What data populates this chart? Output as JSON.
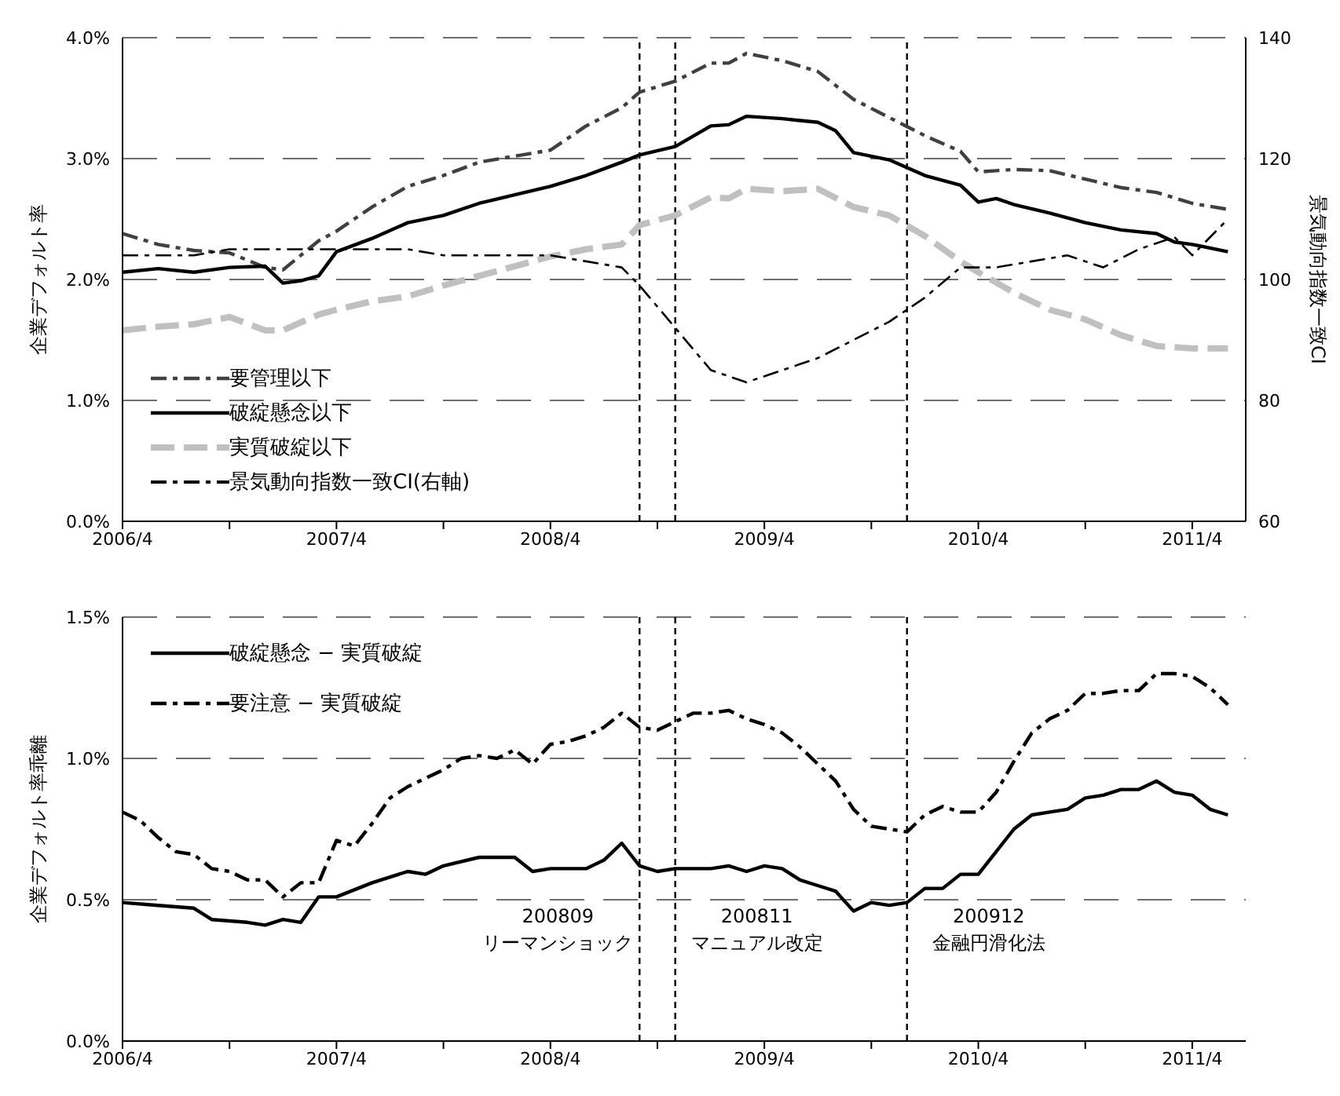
{
  "chart_data": [
    {
      "type": "line",
      "ylabel": "企業デフォルト率",
      "y2label": "景気動向指数一致CI",
      "xlim": [
        "2006-04",
        "2011-07"
      ],
      "xticks": [
        {
          "value": "2006-04",
          "label": "2006/4"
        },
        {
          "value": "2006-10",
          "label": null
        },
        {
          "value": "2007-04",
          "label": "2007/4"
        },
        {
          "value": "2007-10",
          "label": null
        },
        {
          "value": "2008-04",
          "label": "2008/4"
        },
        {
          "value": "2008-10",
          "label": null
        },
        {
          "value": "2009-04",
          "label": "2009/4"
        },
        {
          "value": "2009-10",
          "label": null
        },
        {
          "value": "2010-04",
          "label": "2010/4"
        },
        {
          "value": "2010-10",
          "label": null
        },
        {
          "value": "2011-04",
          "label": "2011/4"
        }
      ],
      "ylim": [
        0,
        4
      ],
      "yticks": [
        {
          "value": 0,
          "label": "0.0%"
        },
        {
          "value": 1,
          "label": "1.0%"
        },
        {
          "value": 2,
          "label": "2.0%"
        },
        {
          "value": 3,
          "label": "3.0%"
        },
        {
          "value": 4,
          "label": "4.0%"
        }
      ],
      "y2lim": [
        60,
        140
      ],
      "y2ticks": [
        60,
        80,
        100,
        120,
        140
      ],
      "grid": "y",
      "legend": "bottom left",
      "ref_lines": [
        {
          "axis": "x",
          "value": "2008-09",
          "label": null,
          "line_style": "dashed",
          "color": "#000000"
        },
        {
          "axis": "x",
          "value": "2008-11",
          "label": null,
          "line_style": "dashed",
          "color": "#000000"
        },
        {
          "axis": "x",
          "value": "2009-12",
          "label": null,
          "line_style": "dashed",
          "color": "#000000"
        }
      ],
      "series": [
        {
          "name": "要管理以下",
          "color": "#404040",
          "line_style": "dashdot",
          "x": [
            "2006-04",
            "2006-06",
            "2006-08",
            "2006-10",
            "2006-12",
            "2007-01",
            "2007-03",
            "2007-04",
            "2007-06",
            "2007-08",
            "2007-10",
            "2007-12",
            "2008-02",
            "2008-04",
            "2008-06",
            "2008-08",
            "2008-09",
            "2008-11",
            "2009-01",
            "2009-02",
            "2009-03",
            "2009-05",
            "2009-07",
            "2009-09",
            "2009-11",
            "2010-01",
            "2010-03",
            "2010-04",
            "2010-06",
            "2010-08",
            "2010-10",
            "2010-12",
            "2011-02",
            "2011-04",
            "2011-06"
          ],
          "values": [
            2.38,
            2.29,
            2.24,
            2.22,
            2.1,
            2.08,
            2.32,
            2.4,
            2.6,
            2.77,
            2.86,
            2.97,
            3.02,
            3.07,
            3.27,
            3.42,
            3.55,
            3.64,
            3.79,
            3.79,
            3.87,
            3.81,
            3.72,
            3.49,
            3.34,
            3.19,
            3.06,
            2.89,
            2.91,
            2.9,
            2.83,
            2.76,
            2.72,
            2.63,
            2.58
          ]
        },
        {
          "name": "破綻懸念以下",
          "color": "#000000",
          "line_style": "solid",
          "x": [
            "2006-04",
            "2006-06",
            "2006-08",
            "2006-10",
            "2006-12",
            "2007-01",
            "2007-02",
            "2007-03",
            "2007-04",
            "2007-06",
            "2007-08",
            "2007-10",
            "2007-12",
            "2008-02",
            "2008-04",
            "2008-06",
            "2008-08",
            "2008-09",
            "2008-11",
            "2009-01",
            "2009-02",
            "2009-03",
            "2009-05",
            "2009-07",
            "2009-08",
            "2009-09",
            "2009-11",
            "2010-01",
            "2010-03",
            "2010-04",
            "2010-05",
            "2010-06",
            "2010-08",
            "2010-10",
            "2010-12",
            "2011-02",
            "2011-03",
            "2011-04",
            "2011-06"
          ],
          "values": [
            2.06,
            2.09,
            2.06,
            2.1,
            2.11,
            1.97,
            1.99,
            2.03,
            2.23,
            2.34,
            2.47,
            2.53,
            2.63,
            2.7,
            2.77,
            2.86,
            2.97,
            3.03,
            3.1,
            3.27,
            3.28,
            3.35,
            3.33,
            3.3,
            3.23,
            3.05,
            2.99,
            2.86,
            2.78,
            2.64,
            2.67,
            2.62,
            2.55,
            2.47,
            2.41,
            2.38,
            2.31,
            2.29,
            2.23
          ]
        },
        {
          "name": "実質破綻以下",
          "color": "#c0c0c0",
          "line_style": "dashed",
          "x": [
            "2006-04",
            "2006-06",
            "2006-08",
            "2006-10",
            "2006-12",
            "2007-01",
            "2007-03",
            "2007-04",
            "2007-06",
            "2007-08",
            "2007-10",
            "2007-12",
            "2008-02",
            "2008-04",
            "2008-06",
            "2008-08",
            "2008-09",
            "2008-11",
            "2009-01",
            "2009-02",
            "2009-03",
            "2009-05",
            "2009-07",
            "2009-09",
            "2009-11",
            "2010-01",
            "2010-03",
            "2010-04",
            "2010-06",
            "2010-08",
            "2010-10",
            "2010-12",
            "2011-02",
            "2011-04",
            "2011-06"
          ],
          "values": [
            1.58,
            1.61,
            1.63,
            1.69,
            1.58,
            1.58,
            1.71,
            1.75,
            1.82,
            1.86,
            1.95,
            2.03,
            2.11,
            2.19,
            2.25,
            2.29,
            2.45,
            2.53,
            2.68,
            2.67,
            2.75,
            2.73,
            2.75,
            2.6,
            2.53,
            2.36,
            2.15,
            2.06,
            1.89,
            1.75,
            1.67,
            1.54,
            1.45,
            1.43,
            1.43
          ]
        },
        {
          "name": "景気動向指数一致CI(右軸)",
          "color": "#000000",
          "line_style": "dashdot",
          "axis": "y2",
          "x": [
            "2006-04",
            "2006-06",
            "2006-08",
            "2006-10",
            "2006-12",
            "2007-02",
            "2007-04",
            "2007-06",
            "2007-08",
            "2007-10",
            "2007-12",
            "2008-02",
            "2008-04",
            "2008-06",
            "2008-08",
            "2008-09",
            "2008-11",
            "2009-01",
            "2009-03",
            "2009-05",
            "2009-07",
            "2009-09",
            "2009-11",
            "2010-01",
            "2010-03",
            "2010-05",
            "2010-07",
            "2010-09",
            "2010-11",
            "2011-01",
            "2011-03",
            "2011-04",
            "2011-06"
          ],
          "values": [
            104,
            104,
            104,
            105,
            105,
            105,
            105,
            105,
            105,
            104,
            104,
            104,
            104,
            103,
            102,
            99,
            92,
            85,
            83,
            85,
            87,
            90,
            93,
            97,
            102,
            102,
            103,
            104,
            102,
            105,
            107,
            104,
            110
          ]
        }
      ]
    },
    {
      "type": "line",
      "ylabel": "企業デフォルト率乖離",
      "xlim": [
        "2006-04",
        "2011-07"
      ],
      "xticks": [
        {
          "value": "2006-04",
          "label": "2006/4"
        },
        {
          "value": "2006-10",
          "label": null
        },
        {
          "value": "2007-04",
          "label": "2007/4"
        },
        {
          "value": "2007-10",
          "label": null
        },
        {
          "value": "2008-04",
          "label": "2008/4"
        },
        {
          "value": "2008-10",
          "label": null
        },
        {
          "value": "2009-04",
          "label": "2009/4"
        },
        {
          "value": "2009-10",
          "label": null
        },
        {
          "value": "2010-04",
          "label": "2010/4"
        },
        {
          "value": "2010-10",
          "label": null
        },
        {
          "value": "2011-04",
          "label": "2011/4"
        }
      ],
      "ylim": [
        0,
        1.5
      ],
      "yticks": [
        {
          "value": 0,
          "label": "0.0%"
        },
        {
          "value": 0.5,
          "label": "0.5%"
        },
        {
          "value": 1,
          "label": "1.0%"
        },
        {
          "value": 1.5,
          "label": "1.5%"
        }
      ],
      "grid": "y",
      "legend": "top left",
      "ref_lines": [
        {
          "axis": "x",
          "value": "2008-09",
          "label": "200809\nリーマンショック",
          "line_style": "dashed",
          "color": "#000000"
        },
        {
          "axis": "x",
          "value": "2008-11",
          "label": "200811\nマニュアル改定",
          "line_style": "dashed",
          "color": "#000000"
        },
        {
          "axis": "x",
          "value": "2009-12",
          "label": "200912\n金融円滑化法",
          "line_style": "dashed",
          "color": "#000000"
        }
      ],
      "series": [
        {
          "name": "破綻懸念 − 実質破綻",
          "color": "#000000",
          "line_style": "solid",
          "x": [
            "2006-04",
            "2006-06",
            "2006-08",
            "2006-09",
            "2006-11",
            "2006-12",
            "2007-01",
            "2007-02",
            "2007-03",
            "2007-04",
            "2007-06",
            "2007-08",
            "2007-09",
            "2007-10",
            "2007-12",
            "2008-02",
            "2008-03",
            "2008-04",
            "2008-06",
            "2008-07",
            "2008-08",
            "2008-09",
            "2008-10",
            "2008-11",
            "2009-01",
            "2009-02",
            "2009-03",
            "2009-04",
            "2009-05",
            "2009-06",
            "2009-07",
            "2009-08",
            "2009-09",
            "2009-10",
            "2009-11",
            "2009-12",
            "2010-01",
            "2010-02",
            "2010-03",
            "2010-04",
            "2010-05",
            "2010-06",
            "2010-07",
            "2010-08",
            "2010-09",
            "2010-10",
            "2010-11",
            "2010-12",
            "2011-01",
            "2011-02",
            "2011-03",
            "2011-04",
            "2011-05",
            "2011-06"
          ],
          "values": [
            0.49,
            0.48,
            0.47,
            0.43,
            0.42,
            0.41,
            0.43,
            0.42,
            0.51,
            0.51,
            0.56,
            0.6,
            0.59,
            0.62,
            0.65,
            0.65,
            0.6,
            0.61,
            0.61,
            0.64,
            0.7,
            0.62,
            0.6,
            0.61,
            0.61,
            0.62,
            0.6,
            0.62,
            0.61,
            0.57,
            0.55,
            0.53,
            0.46,
            0.49,
            0.48,
            0.49,
            0.54,
            0.54,
            0.59,
            0.59,
            0.67,
            0.75,
            0.8,
            0.81,
            0.82,
            0.86,
            0.87,
            0.89,
            0.89,
            0.92,
            0.88,
            0.87,
            0.82,
            0.8
          ]
        },
        {
          "name": "要注意 − 実質破綻",
          "color": "#000000",
          "line_style": "dashdot",
          "x": [
            "2006-04",
            "2006-05",
            "2006-06",
            "2006-07",
            "2006-08",
            "2006-09",
            "2006-10",
            "2006-11",
            "2006-12",
            "2007-01",
            "2007-02",
            "2007-03",
            "2007-04",
            "2007-05",
            "2007-06",
            "2007-07",
            "2007-08",
            "2007-09",
            "2007-10",
            "2007-11",
            "2007-12",
            "2008-01",
            "2008-02",
            "2008-03",
            "2008-04",
            "2008-05",
            "2008-06",
            "2008-07",
            "2008-08",
            "2008-09",
            "2008-10",
            "2008-12",
            "2009-01",
            "2009-02",
            "2009-03",
            "2009-04",
            "2009-05",
            "2009-06",
            "2009-07",
            "2009-08",
            "2009-09",
            "2009-10",
            "2009-11",
            "2009-12",
            "2010-01",
            "2010-02",
            "2010-03",
            "2010-04",
            "2010-05",
            "2010-06",
            "2010-07",
            "2010-08",
            "2010-09",
            "2010-10",
            "2010-11",
            "2010-12",
            "2011-01",
            "2011-02",
            "2011-03",
            "2011-04",
            "2011-05",
            "2011-06"
          ],
          "values": [
            0.81,
            0.78,
            0.72,
            0.67,
            0.66,
            0.61,
            0.6,
            0.57,
            0.57,
            0.51,
            0.56,
            0.56,
            0.71,
            0.69,
            0.77,
            0.86,
            0.9,
            0.93,
            0.96,
            1.0,
            1.01,
            1.0,
            1.03,
            0.98,
            1.05,
            1.06,
            1.08,
            1.11,
            1.16,
            1.11,
            1.1,
            1.16,
            1.16,
            1.17,
            1.14,
            1.12,
            1.09,
            1.04,
            0.98,
            0.92,
            0.82,
            0.76,
            0.75,
            0.74,
            0.8,
            0.83,
            0.81,
            0.81,
            0.88,
            0.99,
            1.09,
            1.14,
            1.17,
            1.23,
            1.23,
            1.24,
            1.24,
            1.3,
            1.3,
            1.29,
            1.25,
            1.19
          ]
        }
      ]
    }
  ]
}
